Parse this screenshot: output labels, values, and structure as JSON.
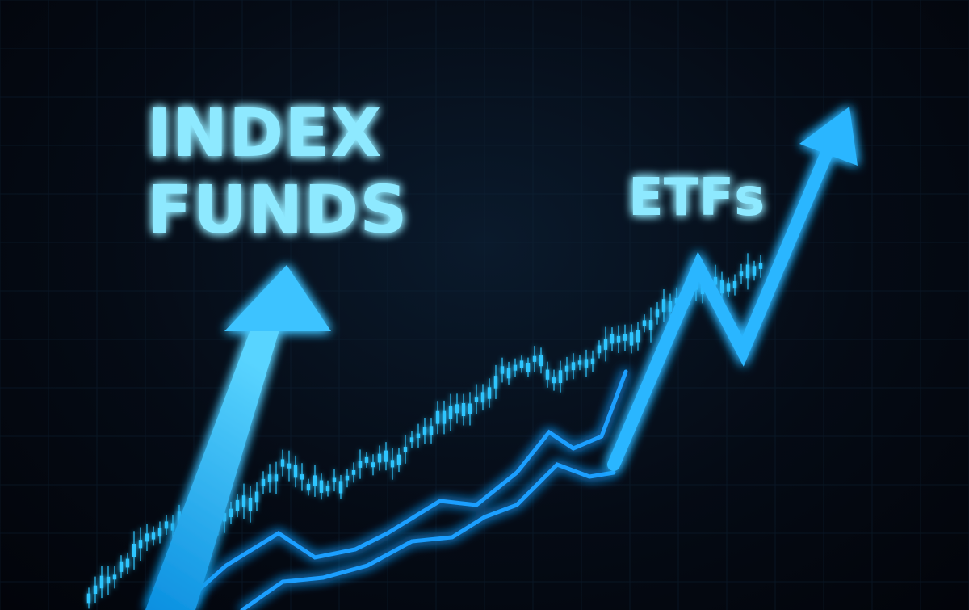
{
  "headline_primary": {
    "line1": "INDEX",
    "line2": "FUNDS"
  },
  "headline_secondary": "ETFs",
  "colors": {
    "background": "#03060c",
    "glow": "#1fb4ff",
    "text": "#8ee9ff",
    "candle": "#2fc6ff",
    "arrow_fill": "#27b8ff"
  }
}
